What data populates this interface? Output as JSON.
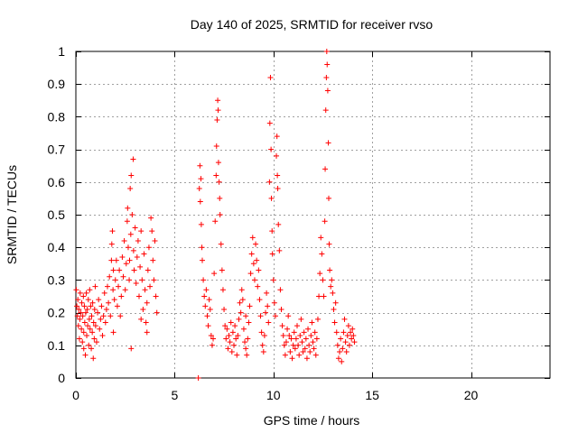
{
  "chart_data": {
    "type": "scatter",
    "title": "Day 140 of 2025, SRMTID for receiver rvso",
    "xlabel": "GPS time / hours",
    "ylabel": "SRMTID / TECUs",
    "xlim": [
      0,
      24
    ],
    "ylim": [
      0,
      1
    ],
    "xticks": [
      0,
      5,
      10,
      15,
      20
    ],
    "xtick_labels": [
      "0",
      "5",
      "10",
      "15",
      "20"
    ],
    "yticks": [
      0,
      0.1,
      0.2,
      0.3,
      0.4,
      0.5,
      0.6,
      0.7,
      0.8,
      0.9,
      1
    ],
    "ytick_labels": [
      "0",
      "0.1",
      "0.2",
      "0.3",
      "0.4",
      "0.5",
      "0.6",
      "0.7",
      "0.8",
      "0.9",
      "1"
    ],
    "grid": true,
    "marker": "plus",
    "color": "#ff0000",
    "series": [
      {
        "name": "SRMTID",
        "points": [
          [
            0.02,
            0.27
          ],
          [
            0.05,
            0.22
          ],
          [
            0.08,
            0.19
          ],
          [
            0.1,
            0.24
          ],
          [
            0.13,
            0.16
          ],
          [
            0.15,
            0.21
          ],
          [
            0.18,
            0.12
          ],
          [
            0.2,
            0.18
          ],
          [
            0.22,
            0.26
          ],
          [
            0.25,
            0.2
          ],
          [
            0.28,
            0.15
          ],
          [
            0.3,
            0.23
          ],
          [
            0.33,
            0.11
          ],
          [
            0.35,
            0.19
          ],
          [
            0.38,
            0.25
          ],
          [
            0.4,
            0.14
          ],
          [
            0.43,
            0.22
          ],
          [
            0.45,
            0.17
          ],
          [
            0.48,
            0.07
          ],
          [
            0.5,
            0.2
          ],
          [
            0.53,
            0.26
          ],
          [
            0.55,
            0.13
          ],
          [
            0.58,
            0.21
          ],
          [
            0.6,
            0.16
          ],
          [
            0.63,
            0.24
          ],
          [
            0.65,
            0.1
          ],
          [
            0.68,
            0.18
          ],
          [
            0.7,
            0.27
          ],
          [
            0.72,
            0.15
          ],
          [
            0.75,
            0.22
          ],
          [
            0.78,
            0.09
          ],
          [
            0.8,
            0.19
          ],
          [
            0.83,
            0.14
          ],
          [
            0.85,
            0.23
          ],
          [
            0.88,
            0.06
          ],
          [
            0.9,
            0.17
          ],
          [
            0.93,
            0.12
          ],
          [
            0.95,
            0.21
          ],
          [
            0.98,
            0.28
          ],
          [
            1.0,
            0.16
          ],
          [
            1.05,
            0.11
          ],
          [
            1.1,
            0.2
          ],
          [
            1.15,
            0.24
          ],
          [
            1.2,
            0.15
          ],
          [
            1.25,
            0.18
          ],
          [
            1.3,
            0.22
          ],
          [
            1.35,
            0.13
          ],
          [
            1.4,
            0.19
          ],
          [
            1.45,
            0.26
          ],
          [
            1.5,
            0.17
          ],
          [
            1.55,
            0.21
          ],
          [
            1.6,
            0.28
          ],
          [
            1.65,
            0.23
          ],
          [
            1.7,
            0.31
          ],
          [
            1.75,
            0.19
          ],
          [
            1.8,
            0.36
          ],
          [
            1.82,
            0.41
          ],
          [
            1.85,
            0.45
          ],
          [
            1.88,
            0.27
          ],
          [
            1.9,
            0.33
          ],
          [
            1.95,
            0.24
          ],
          [
            2.0,
            0.3
          ],
          [
            2.05,
            0.36
          ],
          [
            2.1,
            0.22
          ],
          [
            2.15,
            0.28
          ],
          [
            2.2,
            0.33
          ],
          [
            2.25,
            0.19
          ],
          [
            2.3,
            0.25
          ],
          [
            2.35,
            0.37
          ],
          [
            2.4,
            0.31
          ],
          [
            2.45,
            0.42
          ],
          [
            2.5,
            0.27
          ],
          [
            2.55,
            0.35
          ],
          [
            2.6,
            0.48
          ],
          [
            2.62,
            0.52
          ],
          [
            2.65,
            0.4
          ],
          [
            2.7,
            0.3
          ],
          [
            2.72,
            0.36
          ],
          [
            2.75,
            0.58
          ],
          [
            2.78,
            0.44
          ],
          [
            2.8,
            0.62
          ],
          [
            2.85,
            0.5
          ],
          [
            2.9,
            0.67
          ],
          [
            2.92,
            0.39
          ],
          [
            2.95,
            0.33
          ],
          [
            3.0,
            0.46
          ],
          [
            3.05,
            0.29
          ],
          [
            3.1,
            0.37
          ],
          [
            3.15,
            0.42
          ],
          [
            3.2,
            0.25
          ],
          [
            3.25,
            0.34
          ],
          [
            3.3,
            0.45
          ],
          [
            3.35,
            0.3
          ],
          [
            3.4,
            0.21
          ],
          [
            3.45,
            0.38
          ],
          [
            3.5,
            0.27
          ],
          [
            3.55,
            0.17
          ],
          [
            3.6,
            0.23
          ],
          [
            3.65,
            0.33
          ],
          [
            3.7,
            0.4
          ],
          [
            3.75,
            0.28
          ],
          [
            3.8,
            0.49
          ],
          [
            3.85,
            0.45
          ],
          [
            3.9,
            0.36
          ],
          [
            3.95,
            0.3
          ],
          [
            4.0,
            0.42
          ],
          [
            4.05,
            0.25
          ],
          [
            4.1,
            0.2
          ],
          [
            2.8,
            0.09
          ],
          [
            3.6,
            0.14
          ],
          [
            6.2,
            0.0
          ],
          [
            6.25,
            0.58
          ],
          [
            6.28,
            0.65
          ],
          [
            6.3,
            0.54
          ],
          [
            6.33,
            0.61
          ],
          [
            6.35,
            0.47
          ],
          [
            6.38,
            0.4
          ],
          [
            6.4,
            0.36
          ],
          [
            6.45,
            0.3
          ],
          [
            6.5,
            0.25
          ],
          [
            6.55,
            0.22
          ],
          [
            6.6,
            0.27
          ],
          [
            6.65,
            0.19
          ],
          [
            6.7,
            0.16
          ],
          [
            6.75,
            0.24
          ],
          [
            6.8,
            0.21
          ],
          [
            6.85,
            0.13
          ],
          [
            6.9,
            0.1
          ],
          [
            6.95,
            0.12
          ],
          [
            7.0,
            0.32
          ],
          [
            7.05,
            0.48
          ],
          [
            7.1,
            0.62
          ],
          [
            7.12,
            0.71
          ],
          [
            7.15,
            0.79
          ],
          [
            7.18,
            0.85
          ],
          [
            7.2,
            0.82
          ],
          [
            7.22,
            0.66
          ],
          [
            7.25,
            0.6
          ],
          [
            7.28,
            0.55
          ],
          [
            7.3,
            0.5
          ],
          [
            7.35,
            0.41
          ],
          [
            7.4,
            0.33
          ],
          [
            7.45,
            0.27
          ],
          [
            7.5,
            0.21
          ],
          [
            7.55,
            0.16
          ],
          [
            7.6,
            0.12
          ],
          [
            7.65,
            0.15
          ],
          [
            7.7,
            0.09
          ],
          [
            7.75,
            0.13
          ],
          [
            7.8,
            0.11
          ],
          [
            7.85,
            0.17
          ],
          [
            7.9,
            0.08
          ],
          [
            7.95,
            0.14
          ],
          [
            8.0,
            0.1
          ],
          [
            8.05,
            0.16
          ],
          [
            8.1,
            0.12
          ],
          [
            8.15,
            0.07
          ],
          [
            8.2,
            0.13
          ],
          [
            8.25,
            0.18
          ],
          [
            8.3,
            0.23
          ],
          [
            8.35,
            0.2
          ],
          [
            8.4,
            0.27
          ],
          [
            8.45,
            0.24
          ],
          [
            8.5,
            0.15
          ],
          [
            8.55,
            0.11
          ],
          [
            8.6,
            0.09
          ],
          [
            8.65,
            0.07
          ],
          [
            8.7,
            0.12
          ],
          [
            8.75,
            0.17
          ],
          [
            8.8,
            0.22
          ],
          [
            8.85,
            0.32
          ],
          [
            8.9,
            0.38
          ],
          [
            8.95,
            0.43
          ],
          [
            9.0,
            0.35
          ],
          [
            9.05,
            0.3
          ],
          [
            9.1,
            0.41
          ],
          [
            9.15,
            0.36
          ],
          [
            9.2,
            0.28
          ],
          [
            9.25,
            0.33
          ],
          [
            9.3,
            0.24
          ],
          [
            9.35,
            0.19
          ],
          [
            9.4,
            0.14
          ],
          [
            9.45,
            0.1
          ],
          [
            9.5,
            0.08
          ],
          [
            9.55,
            0.13
          ],
          [
            9.6,
            0.2
          ],
          [
            9.65,
            0.26
          ],
          [
            9.7,
            0.22
          ],
          [
            9.75,
            0.17
          ],
          [
            9.8,
            0.6
          ],
          [
            9.82,
            0.78
          ],
          [
            9.85,
            0.92
          ],
          [
            9.88,
            0.7
          ],
          [
            9.9,
            0.55
          ],
          [
            9.93,
            0.45
          ],
          [
            9.95,
            0.38
          ],
          [
            10.0,
            0.3
          ],
          [
            10.05,
            0.23
          ],
          [
            10.1,
            0.19
          ],
          [
            10.15,
            0.68
          ],
          [
            10.18,
            0.74
          ],
          [
            10.2,
            0.62
          ],
          [
            10.22,
            0.58
          ],
          [
            10.25,
            0.47
          ],
          [
            10.3,
            0.39
          ],
          [
            10.35,
            0.27
          ],
          [
            10.4,
            0.21
          ],
          [
            10.45,
            0.16
          ],
          [
            10.5,
            0.13
          ],
          [
            10.55,
            0.1
          ],
          [
            10.6,
            0.07
          ],
          [
            10.65,
            0.11
          ],
          [
            10.7,
            0.15
          ],
          [
            10.75,
            0.19
          ],
          [
            10.8,
            0.13
          ],
          [
            10.85,
            0.08
          ],
          [
            10.9,
            0.12
          ],
          [
            10.95,
            0.06
          ],
          [
            11.0,
            0.1
          ],
          [
            11.05,
            0.14
          ],
          [
            11.1,
            0.09
          ],
          [
            11.15,
            0.12
          ],
          [
            11.2,
            0.16
          ],
          [
            11.25,
            0.1
          ],
          [
            11.3,
            0.07
          ],
          [
            11.35,
            0.13
          ],
          [
            11.4,
            0.18
          ],
          [
            11.45,
            0.11
          ],
          [
            11.5,
            0.08
          ],
          [
            11.55,
            0.14
          ],
          [
            11.6,
            0.09
          ],
          [
            11.65,
            0.12
          ],
          [
            11.7,
            0.06
          ],
          [
            11.75,
            0.15
          ],
          [
            11.8,
            0.1
          ],
          [
            11.85,
            0.08
          ],
          [
            11.9,
            0.13
          ],
          [
            11.95,
            0.17
          ],
          [
            12.0,
            0.11
          ],
          [
            12.05,
            0.09
          ],
          [
            12.1,
            0.14
          ],
          [
            12.15,
            0.07
          ],
          [
            12.2,
            0.12
          ],
          [
            12.25,
            0.18
          ],
          [
            12.3,
            0.25
          ],
          [
            12.35,
            0.32
          ],
          [
            12.4,
            0.43
          ],
          [
            12.45,
            0.38
          ],
          [
            12.5,
            0.3
          ],
          [
            12.55,
            0.25
          ],
          [
            12.6,
            0.48
          ],
          [
            12.62,
            0.64
          ],
          [
            12.65,
            0.82
          ],
          [
            12.68,
            0.92
          ],
          [
            12.7,
            1.0
          ],
          [
            12.72,
            0.96
          ],
          [
            12.75,
            0.88
          ],
          [
            12.78,
            0.72
          ],
          [
            12.8,
            0.55
          ],
          [
            12.82,
            0.41
          ],
          [
            12.85,
            0.33
          ],
          [
            12.9,
            0.28
          ],
          [
            12.95,
            0.3
          ],
          [
            13.0,
            0.26
          ],
          [
            13.05,
            0.21
          ],
          [
            13.1,
            0.17
          ],
          [
            13.15,
            0.23
          ],
          [
            13.2,
            0.14
          ],
          [
            13.25,
            0.1
          ],
          [
            13.3,
            0.06
          ],
          [
            13.35,
            0.08
          ],
          [
            13.4,
            0.12
          ],
          [
            13.45,
            0.05
          ],
          [
            13.5,
            0.09
          ],
          [
            13.55,
            0.14
          ],
          [
            13.6,
            0.18
          ],
          [
            13.65,
            0.11
          ],
          [
            13.7,
            0.08
          ],
          [
            13.75,
            0.13
          ],
          [
            13.8,
            0.16
          ],
          [
            13.85,
            0.1
          ],
          [
            13.9,
            0.14
          ],
          [
            13.95,
            0.12
          ],
          [
            14.0,
            0.15
          ],
          [
            14.05,
            0.13
          ],
          [
            14.1,
            0.11
          ],
          [
            0.4,
            0.09
          ],
          [
            1.9,
            0.14
          ],
          [
            3.3,
            0.18
          ],
          [
            8.6,
            0.19
          ]
        ]
      }
    ]
  }
}
